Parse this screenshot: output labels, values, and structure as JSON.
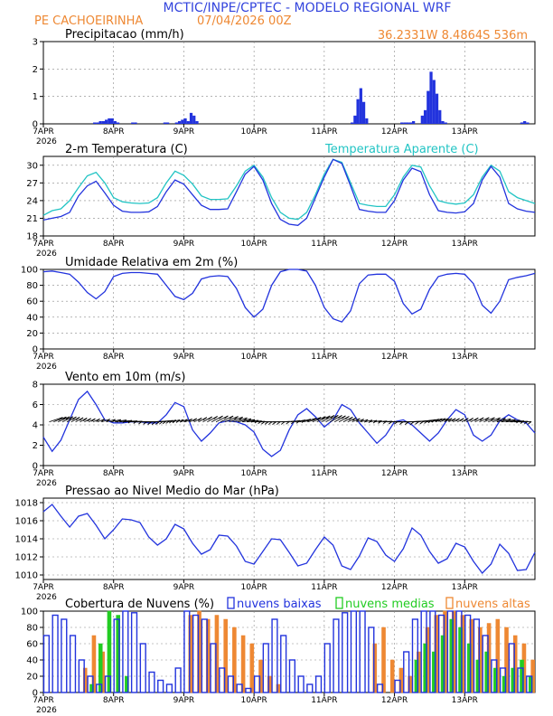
{
  "header": {
    "title": "MCTIC/INPE/CPTEC - MODELO REGIONAL WRF",
    "station": "PE CACHOEIRINHA",
    "run": "07/04/2026 00Z",
    "coords": "36.2331W 8.4864S 536m",
    "year": "2026"
  },
  "colors": {
    "title": "#3344dd",
    "orange": "#ee8833",
    "blue": "#2233dd",
    "teal": "#22c4c4",
    "green": "#22cc22"
  },
  "chart_data": [
    {
      "id": "precip",
      "type": "bar",
      "title": "Precipitacao (mm/h)",
      "ylim": [
        0,
        3
      ],
      "yticks": [
        0,
        1,
        2,
        3
      ],
      "xtick_labels": [
        "7APR",
        "8APR",
        "9APR",
        "10APR",
        "11APR",
        "12APR",
        "13APR"
      ],
      "x_hours": [
        17,
        18,
        19,
        20,
        21,
        22,
        23,
        24,
        25,
        30,
        31,
        41,
        42,
        45,
        46,
        47,
        48,
        49,
        50,
        51,
        52,
        105,
        106,
        107,
        108,
        109,
        110,
        122,
        123,
        124,
        125,
        126,
        129,
        130,
        131,
        132,
        133,
        134,
        135,
        136,
        137,
        163,
        164,
        165
      ],
      "values": [
        0.05,
        0.05,
        0.1,
        0.1,
        0.15,
        0.2,
        0.2,
        0.1,
        0.05,
        0.05,
        0.05,
        0.05,
        0.05,
        0.05,
        0.1,
        0.15,
        0.2,
        0.1,
        0.4,
        0.3,
        0.1,
        0.05,
        0.3,
        0.9,
        1.3,
        0.8,
        0.2,
        0.05,
        0.05,
        0.05,
        0.05,
        0.1,
        0.3,
        0.5,
        1.2,
        1.9,
        1.6,
        1.1,
        0.5,
        0.1,
        0.05,
        0.05,
        0.1,
        0.05
      ]
    },
    {
      "id": "temp",
      "type": "line",
      "title": "2-m Temperatura (C)",
      "title2": "Temperatura Aparente (C)",
      "ylim": [
        18,
        31.5
      ],
      "yticks": [
        18,
        21,
        24,
        27,
        30
      ],
      "xtick_labels": [
        "7APR",
        "8APR",
        "9APR",
        "10APR",
        "11APR",
        "12APR",
        "13APR"
      ],
      "x_hours": [
        0,
        3,
        6,
        9,
        12,
        15,
        18,
        21,
        24,
        27,
        30,
        33,
        36,
        39,
        42,
        45,
        48,
        51,
        54,
        57,
        60,
        63,
        66,
        69,
        72,
        75,
        78,
        81,
        84,
        87,
        90,
        93,
        96,
        99,
        102,
        105,
        108,
        111,
        114,
        117,
        120,
        123,
        126,
        129,
        132,
        135,
        138,
        141,
        144,
        147,
        150,
        153,
        156,
        159,
        162,
        165,
        168
      ],
      "series": [
        {
          "name": "Temperatura Aparente (C)",
          "color": "#22c4c4",
          "values": [
            21.5,
            22.3,
            22.6,
            24,
            26.2,
            28.2,
            28.8,
            27,
            24.5,
            23.8,
            23.6,
            23.5,
            23.6,
            24.5,
            27,
            29,
            28.3,
            26.8,
            24.8,
            24.2,
            24.2,
            24.3,
            26.5,
            29,
            30,
            28,
            24.5,
            22,
            21,
            20.8,
            22,
            25,
            28.5,
            31,
            30.5,
            27,
            23.5,
            23.2,
            23,
            23,
            25,
            28,
            30,
            29.7,
            26.5,
            24,
            23.6,
            23.4,
            23.6,
            25,
            28,
            30,
            29,
            25.5,
            24.5,
            24,
            23.5
          ]
        },
        {
          "name": "2-m Temperatura (C)",
          "color": "#2233dd",
          "values": [
            20.7,
            21,
            21.3,
            22,
            24.8,
            26.5,
            27.3,
            25.3,
            23.2,
            22.2,
            22,
            22,
            22.1,
            23,
            25.5,
            27.5,
            26.8,
            25,
            23.2,
            22.5,
            22.5,
            22.6,
            25.5,
            28.5,
            29.8,
            27.5,
            23.5,
            20.8,
            20,
            19.8,
            21,
            24.5,
            28,
            31,
            30.3,
            26.5,
            22.5,
            22.2,
            22,
            22,
            24,
            27.5,
            29.5,
            28.9,
            25,
            22.3,
            22,
            21.9,
            22.1,
            23.5,
            27.5,
            29.8,
            28,
            23.5,
            22.6,
            22.2,
            22
          ]
        }
      ]
    },
    {
      "id": "rh",
      "type": "line",
      "title": "Umidade Relativa em 2m (%)",
      "ylim": [
        0,
        100
      ],
      "yticks": [
        0,
        20,
        40,
        60,
        80,
        100
      ],
      "xtick_labels": [
        "7APR",
        "8APR",
        "9APR",
        "10APR",
        "11APR",
        "12APR",
        "13APR"
      ],
      "x_hours": [
        0,
        3,
        6,
        9,
        12,
        15,
        18,
        21,
        24,
        27,
        30,
        33,
        36,
        39,
        42,
        45,
        48,
        51,
        54,
        57,
        60,
        63,
        66,
        69,
        72,
        75,
        78,
        81,
        84,
        87,
        90,
        93,
        96,
        99,
        102,
        105,
        108,
        111,
        114,
        117,
        120,
        123,
        126,
        129,
        132,
        135,
        138,
        141,
        144,
        147,
        150,
        153,
        156,
        159,
        162,
        165,
        168
      ],
      "series": [
        {
          "name": "Umidade Relativa em 2m (%)",
          "color": "#2233dd",
          "values": [
            97,
            98,
            96,
            94,
            84,
            71,
            63,
            72,
            91,
            95,
            96,
            96,
            95,
            94,
            80,
            66,
            62,
            70,
            88,
            91,
            92,
            91,
            76,
            52,
            40,
            50,
            80,
            97,
            100,
            100,
            98,
            80,
            52,
            38,
            34,
            48,
            82,
            93,
            94,
            94,
            85,
            57,
            44,
            50,
            75,
            91,
            94,
            95,
            94,
            82,
            55,
            45,
            60,
            87,
            90,
            92,
            95
          ]
        }
      ]
    },
    {
      "id": "wind",
      "type": "line",
      "title": "Vento em 10m (m/s)",
      "ylim": [
        0,
        8
      ],
      "yticks": [
        0,
        2,
        4,
        6,
        8
      ],
      "xtick_labels": [
        "7APR",
        "8APR",
        "9APR",
        "10APR",
        "11APR",
        "12APR",
        "13APR"
      ],
      "x_hours": [
        0,
        3,
        6,
        9,
        12,
        15,
        18,
        21,
        24,
        27,
        30,
        33,
        36,
        39,
        42,
        45,
        48,
        51,
        54,
        57,
        60,
        63,
        66,
        69,
        72,
        75,
        78,
        81,
        84,
        87,
        90,
        93,
        96,
        99,
        102,
        105,
        108,
        111,
        114,
        117,
        120,
        123,
        126,
        129,
        132,
        135,
        138,
        141,
        144,
        147,
        150,
        153,
        156,
        159,
        162,
        165,
        168
      ],
      "series": [
        {
          "name": "Vento em 10m (m/s)",
          "color": "#2233dd",
          "values": [
            2.8,
            1.4,
            2.5,
            4.5,
            6.5,
            7.3,
            6,
            4.5,
            4.2,
            4.2,
            4.3,
            4.3,
            4.2,
            4.2,
            5,
            6.2,
            5.8,
            3.5,
            2.4,
            3.2,
            4.2,
            4.4,
            4.3,
            4,
            3.3,
            1.6,
            0.9,
            1.5,
            3.5,
            5,
            5.6,
            4.8,
            3.8,
            4.5,
            6,
            5.5,
            4.2,
            3.2,
            2.2,
            3,
            4.3,
            4.5,
            4,
            3.2,
            2.4,
            3.2,
            4.5,
            5.5,
            5,
            3,
            2.4,
            3,
            4.4,
            5,
            4.5,
            4.2,
            3.2
          ]
        }
      ]
    },
    {
      "id": "mslp",
      "type": "line",
      "title": "Pressao ao Nivel Medio do Mar (hPa)",
      "ylim": [
        1009.5,
        1018.5
      ],
      "yticks": [
        1010,
        1012,
        1014,
        1016,
        1018
      ],
      "xtick_labels": [
        "7APR",
        "8APR",
        "9APR",
        "10APR",
        "11APR",
        "12APR",
        "13APR"
      ],
      "x_hours": [
        0,
        3,
        6,
        9,
        12,
        15,
        18,
        21,
        24,
        27,
        30,
        33,
        36,
        39,
        42,
        45,
        48,
        51,
        54,
        57,
        60,
        63,
        66,
        69,
        72,
        75,
        78,
        81,
        84,
        87,
        90,
        93,
        96,
        99,
        102,
        105,
        108,
        111,
        114,
        117,
        120,
        123,
        126,
        129,
        132,
        135,
        138,
        141,
        144,
        147,
        150,
        153,
        156,
        159,
        162,
        165,
        168
      ],
      "series": [
        {
          "name": "Pressao ao Nivel Medio do Mar (hPa)",
          "color": "#2233dd",
          "values": [
            1017,
            1017.8,
            1016.5,
            1015.3,
            1016.5,
            1016.8,
            1015.5,
            1014,
            1015,
            1016.2,
            1016.1,
            1015.8,
            1014.2,
            1013.3,
            1014,
            1015.6,
            1015.1,
            1013.5,
            1012.3,
            1012.8,
            1014.4,
            1014.3,
            1013.2,
            1011.5,
            1011.2,
            1012.6,
            1014,
            1013.9,
            1012.5,
            1011,
            1011.3,
            1012.8,
            1014.2,
            1013.3,
            1011,
            1010.6,
            1012.1,
            1014.1,
            1013.7,
            1012.2,
            1011.5,
            1012.9,
            1015.2,
            1014.4,
            1012.6,
            1011.3,
            1011.8,
            1013.5,
            1013.1,
            1011.5,
            1010.2,
            1011.2,
            1013.4,
            1012.4,
            1010.5,
            1010.6,
            1012.5
          ]
        }
      ]
    },
    {
      "id": "clouds",
      "type": "bar",
      "title": "Cobertura de Nuvens (%)",
      "legend": [
        "nuvens baixas",
        "nuvens medias",
        "nuvens altas"
      ],
      "ylim": [
        0,
        100
      ],
      "yticks": [
        0,
        20,
        40,
        60,
        80,
        100
      ],
      "xtick_labels": [
        "7APR",
        "8APR",
        "9APR",
        "10APR",
        "11APR",
        "12APR",
        "13APR"
      ],
      "x_hours": [
        0,
        3,
        6,
        9,
        12,
        15,
        18,
        21,
        24,
        27,
        30,
        33,
        36,
        39,
        42,
        45,
        48,
        51,
        54,
        57,
        60,
        63,
        66,
        69,
        72,
        75,
        78,
        81,
        84,
        87,
        90,
        93,
        96,
        99,
        102,
        105,
        108,
        111,
        114,
        117,
        120,
        123,
        126,
        129,
        132,
        135,
        138,
        141,
        144,
        147,
        150,
        153,
        156,
        159,
        162,
        165
      ],
      "series": [
        {
          "name": "nuvens baixas",
          "color": "#2233dd",
          "values": [
            70,
            95,
            90,
            70,
            40,
            20,
            10,
            20,
            90,
            100,
            98,
            60,
            25,
            15,
            10,
            30,
            100,
            95,
            90,
            60,
            30,
            20,
            10,
            5,
            20,
            60,
            90,
            70,
            40,
            20,
            10,
            20,
            60,
            90,
            98,
            100,
            100,
            80,
            10,
            0,
            15,
            50,
            90,
            100,
            100,
            95,
            100,
            100,
            95,
            90,
            70,
            40,
            30,
            60,
            30,
            20
          ]
        },
        {
          "name": "nuvens medias",
          "color": "#22cc22",
          "values": [
            0,
            0,
            0,
            0,
            0,
            10,
            60,
            100,
            95,
            20,
            0,
            0,
            0,
            0,
            0,
            0,
            0,
            0,
            0,
            0,
            0,
            0,
            0,
            0,
            0,
            0,
            0,
            0,
            0,
            0,
            0,
            0,
            0,
            0,
            0,
            0,
            0,
            0,
            0,
            0,
            0,
            0,
            40,
            60,
            50,
            70,
            90,
            80,
            60,
            40,
            50,
            30,
            20,
            30,
            40,
            20
          ]
        },
        {
          "name": "nuvens altas",
          "color": "#ee8833",
          "values": [
            0,
            0,
            0,
            0,
            30,
            70,
            50,
            0,
            0,
            0,
            0,
            0,
            0,
            0,
            0,
            0,
            95,
            100,
            90,
            95,
            90,
            80,
            70,
            60,
            40,
            20,
            10,
            0,
            0,
            0,
            0,
            0,
            0,
            0,
            0,
            0,
            0,
            60,
            80,
            40,
            30,
            20,
            50,
            80,
            95,
            100,
            100,
            95,
            90,
            80,
            85,
            90,
            80,
            70,
            60,
            40
          ]
        }
      ]
    }
  ]
}
